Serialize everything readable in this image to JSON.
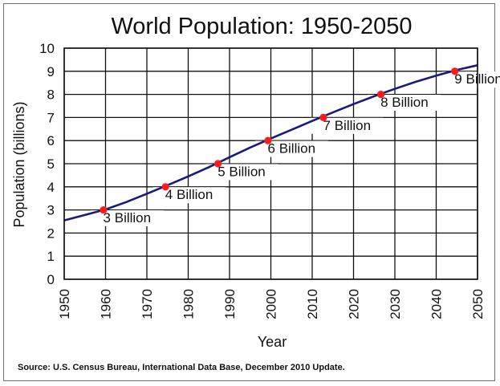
{
  "chart_data": {
    "type": "line",
    "title": "World Population: 1950-2050",
    "xlabel": "Year",
    "ylabel": "Population (billions)",
    "xlim": [
      1950,
      2050
    ],
    "ylim": [
      0,
      10
    ],
    "x_ticks": [
      "1950",
      "1960",
      "1970",
      "1980",
      "1990",
      "2000",
      "2010",
      "2020",
      "2030",
      "2040",
      "2050"
    ],
    "y_ticks": [
      "0",
      "1",
      "2",
      "3",
      "4",
      "5",
      "6",
      "7",
      "8",
      "9",
      "10"
    ],
    "grid": true,
    "series": [
      {
        "x": [
          1950,
          1955,
          1960,
          1965,
          1970,
          1975,
          1980,
          1985,
          1990,
          1995,
          2000,
          2005,
          2010,
          2015,
          2020,
          2025,
          2030,
          2035,
          2040,
          2045,
          2050
        ],
        "values": [
          2.55,
          2.78,
          3.02,
          3.34,
          3.7,
          4.07,
          4.45,
          4.85,
          5.28,
          5.7,
          6.09,
          6.47,
          6.85,
          7.22,
          7.58,
          7.92,
          8.24,
          8.54,
          8.81,
          9.06,
          9.26
        ],
        "color": "#1a1a7a"
      }
    ],
    "annotations": [
      {
        "year": 1959.5,
        "value": 3,
        "label": "3 Billion"
      },
      {
        "year": 1974.5,
        "value": 4,
        "label": "4 Billion"
      },
      {
        "year": 1987.2,
        "value": 5,
        "label": "5 Billion"
      },
      {
        "year": 1999.3,
        "value": 6,
        "label": "6 Billion"
      },
      {
        "year": 2012.7,
        "value": 7,
        "label": "7 Billion"
      },
      {
        "year": 2026.6,
        "value": 8,
        "label": "8 Billion"
      },
      {
        "year": 2044.5,
        "value": 9,
        "label": "9 Billion"
      }
    ],
    "marker_color": "#ff1a1a",
    "source": "Source: U.S. Census Bureau, International Data Base, December 2010 Update."
  }
}
